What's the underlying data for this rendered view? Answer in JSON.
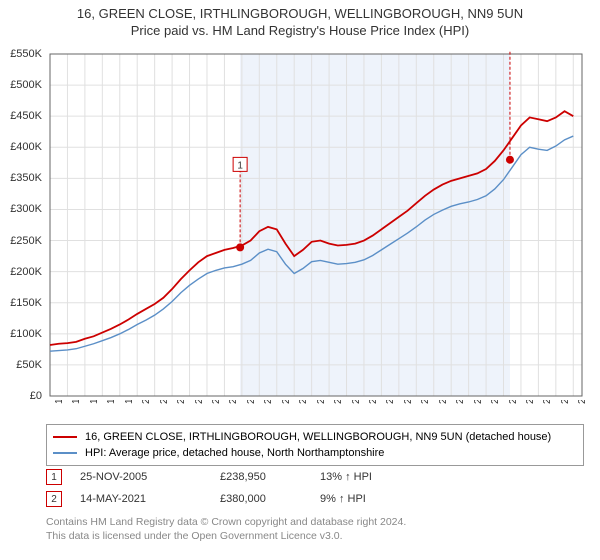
{
  "title": {
    "line1": "16, GREEN CLOSE, IRTHLINGBOROUGH, WELLINGBOROUGH, NN9 5UN",
    "line2": "Price paid vs. HM Land Registry's House Price Index (HPI)"
  },
  "chart": {
    "type": "line",
    "background_color": "#ffffff",
    "grid_color": "#e0e0e0",
    "axis_color": "#666666",
    "shaded_region": {
      "x_start": 2005.9,
      "x_end": 2021.37,
      "fill": "#eef3fb"
    },
    "ylim": [
      0,
      550
    ],
    "ytick_step": 50,
    "ytick_prefix": "£",
    "ytick_suffix": "K",
    "xlim": [
      1995,
      2025.5
    ],
    "xticks": [
      1995,
      1996,
      1997,
      1998,
      1999,
      2000,
      2001,
      2002,
      2003,
      2004,
      2005,
      2006,
      2007,
      2008,
      2009,
      2010,
      2011,
      2012,
      2013,
      2014,
      2015,
      2016,
      2017,
      2018,
      2019,
      2020,
      2021,
      2022,
      2023,
      2024,
      2025
    ],
    "series": [
      {
        "name": "16, GREEN CLOSE, IRTHLINGBOROUGH, WELLINGBOROUGH, NN9 5UN (detached house)",
        "color": "#cc0000",
        "line_width": 1.8,
        "data": [
          [
            1995,
            82
          ],
          [
            1995.5,
            84
          ],
          [
            1996,
            85
          ],
          [
            1996.5,
            87
          ],
          [
            1997,
            92
          ],
          [
            1997.5,
            96
          ],
          [
            1998,
            102
          ],
          [
            1998.5,
            108
          ],
          [
            1999,
            115
          ],
          [
            1999.5,
            123
          ],
          [
            2000,
            132
          ],
          [
            2000.5,
            140
          ],
          [
            2001,
            148
          ],
          [
            2001.5,
            158
          ],
          [
            2002,
            172
          ],
          [
            2002.5,
            188
          ],
          [
            2003,
            202
          ],
          [
            2003.5,
            215
          ],
          [
            2004,
            225
          ],
          [
            2004.5,
            230
          ],
          [
            2005,
            235
          ],
          [
            2005.5,
            238
          ],
          [
            2006,
            242
          ],
          [
            2006.5,
            250
          ],
          [
            2007,
            265
          ],
          [
            2007.5,
            272
          ],
          [
            2008,
            268
          ],
          [
            2008.5,
            245
          ],
          [
            2009,
            225
          ],
          [
            2009.5,
            235
          ],
          [
            2010,
            248
          ],
          [
            2010.5,
            250
          ],
          [
            2011,
            245
          ],
          [
            2011.5,
            242
          ],
          [
            2012,
            243
          ],
          [
            2012.5,
            245
          ],
          [
            2013,
            250
          ],
          [
            2013.5,
            258
          ],
          [
            2014,
            268
          ],
          [
            2014.5,
            278
          ],
          [
            2015,
            288
          ],
          [
            2015.5,
            298
          ],
          [
            2016,
            310
          ],
          [
            2016.5,
            322
          ],
          [
            2017,
            332
          ],
          [
            2017.5,
            340
          ],
          [
            2018,
            346
          ],
          [
            2018.5,
            350
          ],
          [
            2019,
            354
          ],
          [
            2019.5,
            358
          ],
          [
            2020,
            365
          ],
          [
            2020.5,
            378
          ],
          [
            2021,
            395
          ],
          [
            2021.5,
            415
          ],
          [
            2022,
            435
          ],
          [
            2022.5,
            448
          ],
          [
            2023,
            445
          ],
          [
            2023.5,
            442
          ],
          [
            2024,
            448
          ],
          [
            2024.5,
            458
          ],
          [
            2025,
            450
          ]
        ]
      },
      {
        "name": "HPI: Average price, detached house, North Northamptonshire",
        "color": "#5b8fc7",
        "line_width": 1.4,
        "data": [
          [
            1995,
            72
          ],
          [
            1995.5,
            73
          ],
          [
            1996,
            74
          ],
          [
            1996.5,
            76
          ],
          [
            1997,
            80
          ],
          [
            1997.5,
            84
          ],
          [
            1998,
            89
          ],
          [
            1998.5,
            94
          ],
          [
            1999,
            100
          ],
          [
            1999.5,
            107
          ],
          [
            2000,
            115
          ],
          [
            2000.5,
            122
          ],
          [
            2001,
            130
          ],
          [
            2001.5,
            140
          ],
          [
            2002,
            152
          ],
          [
            2002.5,
            166
          ],
          [
            2003,
            178
          ],
          [
            2003.5,
            188
          ],
          [
            2004,
            197
          ],
          [
            2004.5,
            202
          ],
          [
            2005,
            206
          ],
          [
            2005.5,
            208
          ],
          [
            2006,
            212
          ],
          [
            2006.5,
            218
          ],
          [
            2007,
            230
          ],
          [
            2007.5,
            236
          ],
          [
            2008,
            232
          ],
          [
            2008.5,
            212
          ],
          [
            2009,
            197
          ],
          [
            2009.5,
            205
          ],
          [
            2010,
            216
          ],
          [
            2010.5,
            218
          ],
          [
            2011,
            215
          ],
          [
            2011.5,
            212
          ],
          [
            2012,
            213
          ],
          [
            2012.5,
            215
          ],
          [
            2013,
            219
          ],
          [
            2013.5,
            226
          ],
          [
            2014,
            235
          ],
          [
            2014.5,
            244
          ],
          [
            2015,
            253
          ],
          [
            2015.5,
            262
          ],
          [
            2016,
            272
          ],
          [
            2016.5,
            283
          ],
          [
            2017,
            292
          ],
          [
            2017.5,
            299
          ],
          [
            2018,
            305
          ],
          [
            2018.5,
            309
          ],
          [
            2019,
            312
          ],
          [
            2019.5,
            316
          ],
          [
            2020,
            322
          ],
          [
            2020.5,
            333
          ],
          [
            2021,
            348
          ],
          [
            2021.5,
            368
          ],
          [
            2022,
            388
          ],
          [
            2022.5,
            400
          ],
          [
            2023,
            397
          ],
          [
            2023.5,
            395
          ],
          [
            2024,
            402
          ],
          [
            2024.5,
            412
          ],
          [
            2025,
            418
          ]
        ]
      }
    ],
    "markers": [
      {
        "id": "1",
        "x": 2005.9,
        "y": 239,
        "dot_color": "#cc0000",
        "badge_y_offset": -90,
        "border_color": "#cc0000"
      },
      {
        "id": "2",
        "x": 2021.37,
        "y": 380,
        "dot_color": "#cc0000",
        "badge_y_offset": -160,
        "border_color": "#cc0000"
      }
    ]
  },
  "legend": {
    "items": [
      {
        "color": "#cc0000",
        "label": "16, GREEN CLOSE, IRTHLINGBOROUGH, WELLINGBOROUGH, NN9 5UN (detached house)"
      },
      {
        "color": "#5b8fc7",
        "label": "HPI: Average price, detached house, North Northamptonshire"
      }
    ]
  },
  "transactions": [
    {
      "id": "1",
      "border_color": "#cc0000",
      "date": "25-NOV-2005",
      "price": "£238,950",
      "pct": "13% ↑ HPI"
    },
    {
      "id": "2",
      "border_color": "#cc0000",
      "date": "14-MAY-2021",
      "price": "£380,000",
      "pct": "9% ↑ HPI"
    }
  ],
  "footer": {
    "line1": "Contains HM Land Registry data © Crown copyright and database right 2024.",
    "line2": "This data is licensed under the Open Government Licence v3.0."
  }
}
